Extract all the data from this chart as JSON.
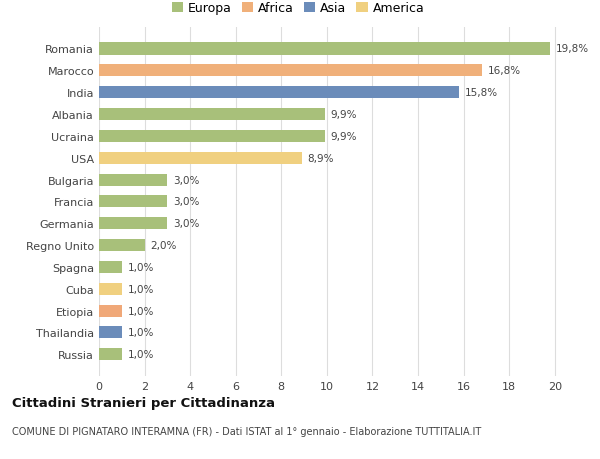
{
  "countries": [
    "Romania",
    "Marocco",
    "India",
    "Albania",
    "Ucraina",
    "USA",
    "Bulgaria",
    "Francia",
    "Germania",
    "Regno Unito",
    "Spagna",
    "Cuba",
    "Etiopia",
    "Thailandia",
    "Russia"
  ],
  "values": [
    19.8,
    16.8,
    15.8,
    9.9,
    9.9,
    8.9,
    3.0,
    3.0,
    3.0,
    2.0,
    1.0,
    1.0,
    1.0,
    1.0,
    1.0
  ],
  "labels": [
    "19,8%",
    "16,8%",
    "15,8%",
    "9,9%",
    "9,9%",
    "8,9%",
    "3,0%",
    "3,0%",
    "3,0%",
    "2,0%",
    "1,0%",
    "1,0%",
    "1,0%",
    "1,0%",
    "1,0%"
  ],
  "colors": [
    "#a8c07a",
    "#f0b07a",
    "#6b8cba",
    "#a8c07a",
    "#a8c07a",
    "#f0d080",
    "#a8c07a",
    "#a8c07a",
    "#a8c07a",
    "#a8c07a",
    "#a8c07a",
    "#f0d080",
    "#f0a878",
    "#6b8cba",
    "#a8c07a"
  ],
  "legend_labels": [
    "Europa",
    "Africa",
    "Asia",
    "America"
  ],
  "legend_colors": [
    "#a8c07a",
    "#f0b07a",
    "#6b8cba",
    "#f0d080"
  ],
  "title": "Cittadini Stranieri per Cittadinanza",
  "subtitle": "COMUNE DI PIGNATARO INTERAMNA (FR) - Dati ISTAT al 1° gennaio - Elaborazione TUTTITALIA.IT",
  "xlim_max": 20,
  "xticks": [
    0,
    2,
    4,
    6,
    8,
    10,
    12,
    14,
    16,
    18,
    20
  ],
  "background_color": "#ffffff",
  "grid_color": "#dddddd",
  "bar_height": 0.55
}
